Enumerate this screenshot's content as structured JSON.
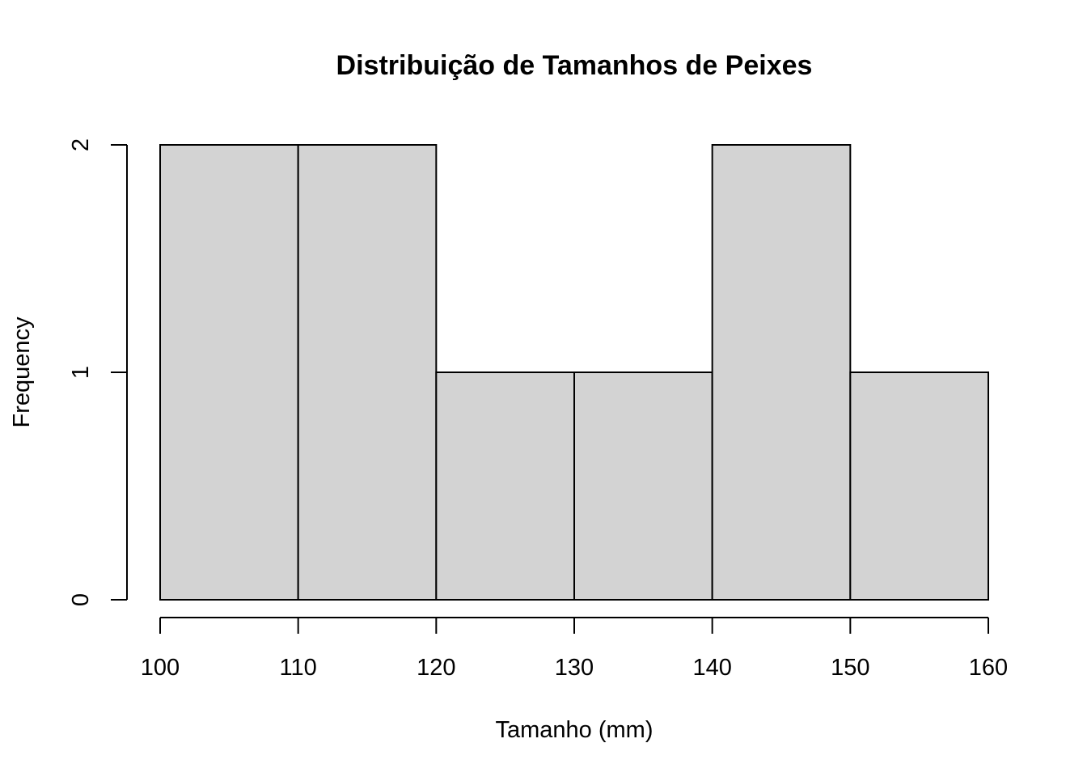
{
  "chart_data": {
    "type": "bar",
    "title": "Distribuição de Tamanhos de Peixes",
    "xlabel": "Tamanho (mm)",
    "ylabel": "Frequency",
    "bins": [
      {
        "from": 100,
        "to": 110,
        "count": 2
      },
      {
        "from": 110,
        "to": 120,
        "count": 2
      },
      {
        "from": 120,
        "to": 130,
        "count": 1
      },
      {
        "from": 130,
        "to": 140,
        "count": 1
      },
      {
        "from": 140,
        "to": 150,
        "count": 2
      },
      {
        "from": 150,
        "to": 160,
        "count": 1
      }
    ],
    "xlim": [
      100,
      160
    ],
    "ylim": [
      0,
      2
    ],
    "x_ticks": [
      "100",
      "110",
      "120",
      "130",
      "140",
      "150",
      "160"
    ],
    "y_ticks": [
      "0",
      "1",
      "2"
    ],
    "bar_color": "#d3d3d3",
    "grid": false,
    "legend": "none"
  }
}
